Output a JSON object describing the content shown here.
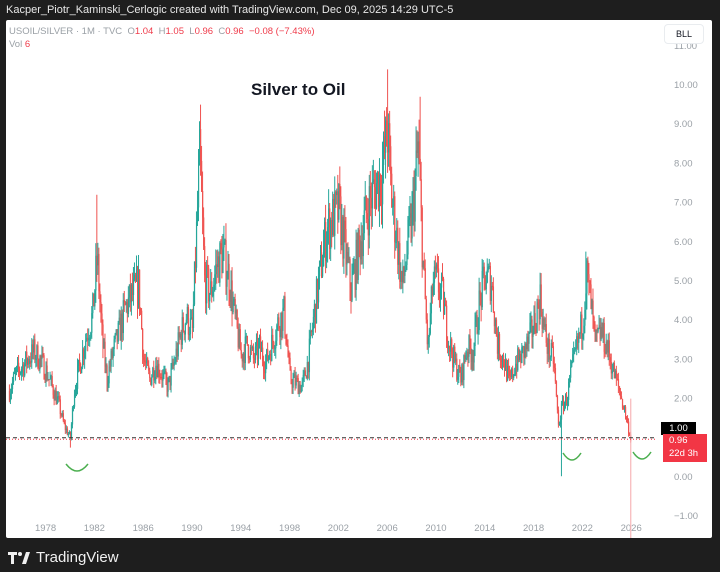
{
  "caption": "Kacper_Piotr_Kaminski_Cerlogic created with TradingView.com, Dec 09, 2025 14:29 UTC-5",
  "legend": {
    "symbol": "USOIL/SILVER · 1M · TVC",
    "open_label": "O",
    "open": "1.04",
    "high_label": "H",
    "high": "1.05",
    "low_label": "L",
    "low": "0.96",
    "close_label": "C",
    "close": "0.96",
    "change": "−0.08 (−7.43%)",
    "vol_label": "Vol",
    "vol": "6"
  },
  "scale_button": "BLL",
  "price_tags": {
    "line_value": "1.00",
    "last_price": "0.96",
    "countdown": "22d 3h"
  },
  "footer": {
    "brand": "TradingView",
    "logo": "TV"
  },
  "colors": {
    "up": "#26a69a",
    "down": "#ef5350",
    "last_tag": "#f23645",
    "annotation": "#4caf50"
  },
  "chart_data": {
    "type": "candlestick",
    "title": "Silver to Oil",
    "series_name": "USOIL/SILVER",
    "interval": "1M",
    "xlabel": "",
    "ylabel": "",
    "ylim": [
      -1,
      11
    ],
    "y_ticks": [
      "11.00",
      "10.00",
      "9.00",
      "8.00",
      "7.00",
      "6.00",
      "5.00",
      "4.00",
      "3.00",
      "2.00",
      "1.00",
      "0.00",
      "−1.00"
    ],
    "x_ticks": [
      "1978",
      "1982",
      "1986",
      "1990",
      "1994",
      "1998",
      "2002",
      "2006",
      "2010",
      "2014",
      "2018",
      "2022",
      "2026"
    ],
    "horizontal_line": 1.0,
    "annotations": [
      "smile-1980-low",
      "smile-2020-low",
      "smile-2025-low"
    ],
    "anchors": [
      {
        "t": 1975.0,
        "c": 2.2
      },
      {
        "t": 1975.5,
        "c": 2.6
      },
      {
        "t": 1976.0,
        "c": 2.8
      },
      {
        "t": 1976.5,
        "c": 3.0
      },
      {
        "t": 1977.0,
        "c": 3.2
      },
      {
        "t": 1977.5,
        "c": 3.0
      },
      {
        "t": 1978.0,
        "c": 2.7
      },
      {
        "t": 1978.5,
        "c": 2.3
      },
      {
        "t": 1979.0,
        "c": 1.9
      },
      {
        "t": 1979.5,
        "c": 1.3
      },
      {
        "t": 1980.0,
        "c": 1.0
      },
      {
        "t": 1980.3,
        "c": 2.2
      },
      {
        "t": 1980.8,
        "c": 2.9
      },
      {
        "t": 1981.3,
        "c": 3.6
      },
      {
        "t": 1981.8,
        "c": 4.1
      },
      {
        "t": 1982.2,
        "c": 5.6
      },
      {
        "t": 1982.6,
        "c": 3.5
      },
      {
        "t": 1983.0,
        "c": 2.5
      },
      {
        "t": 1983.5,
        "c": 3.2
      },
      {
        "t": 1984.0,
        "c": 3.7
      },
      {
        "t": 1984.5,
        "c": 4.3
      },
      {
        "t": 1985.0,
        "c": 4.6
      },
      {
        "t": 1985.6,
        "c": 4.9
      },
      {
        "t": 1986.0,
        "c": 3.0
      },
      {
        "t": 1986.5,
        "c": 2.5
      },
      {
        "t": 1987.0,
        "c": 2.9
      },
      {
        "t": 1987.5,
        "c": 2.6
      },
      {
        "t": 1988.0,
        "c": 2.3
      },
      {
        "t": 1988.5,
        "c": 2.9
      },
      {
        "t": 1989.0,
        "c": 3.6
      },
      {
        "t": 1989.5,
        "c": 4.1
      },
      {
        "t": 1990.0,
        "c": 3.7
      },
      {
        "t": 1990.6,
        "c": 8.2
      },
      {
        "t": 1991.0,
        "c": 5.0
      },
      {
        "t": 1991.5,
        "c": 4.7
      },
      {
        "t": 1992.0,
        "c": 5.4
      },
      {
        "t": 1992.5,
        "c": 5.7
      },
      {
        "t": 1993.0,
        "c": 5.1
      },
      {
        "t": 1993.5,
        "c": 4.0
      },
      {
        "t": 1994.0,
        "c": 3.1
      },
      {
        "t": 1994.5,
        "c": 3.4
      },
      {
        "t": 1995.0,
        "c": 3.0
      },
      {
        "t": 1995.5,
        "c": 3.3
      },
      {
        "t": 1996.0,
        "c": 2.9
      },
      {
        "t": 1996.5,
        "c": 3.4
      },
      {
        "t": 1997.0,
        "c": 3.9
      },
      {
        "t": 1997.5,
        "c": 4.2
      },
      {
        "t": 1998.0,
        "c": 2.5
      },
      {
        "t": 1998.5,
        "c": 2.4
      },
      {
        "t": 1999.0,
        "c": 2.3
      },
      {
        "t": 1999.5,
        "c": 3.0
      },
      {
        "t": 2000.0,
        "c": 4.2
      },
      {
        "t": 2000.5,
        "c": 5.3
      },
      {
        "t": 2001.0,
        "c": 6.3
      },
      {
        "t": 2001.5,
        "c": 6.6
      },
      {
        "t": 2002.0,
        "c": 6.8
      },
      {
        "t": 2002.5,
        "c": 5.8
      },
      {
        "t": 2003.0,
        "c": 4.8
      },
      {
        "t": 2003.5,
        "c": 5.6
      },
      {
        "t": 2004.0,
        "c": 6.4
      },
      {
        "t": 2004.5,
        "c": 7.0
      },
      {
        "t": 2005.0,
        "c": 7.4
      },
      {
        "t": 2005.5,
        "c": 7.7
      },
      {
        "t": 2006.0,
        "c": 8.8
      },
      {
        "t": 2006.3,
        "c": 7.2
      },
      {
        "t": 2006.8,
        "c": 6.0
      },
      {
        "t": 2007.2,
        "c": 4.8
      },
      {
        "t": 2007.6,
        "c": 5.8
      },
      {
        "t": 2008.0,
        "c": 6.6
      },
      {
        "t": 2008.5,
        "c": 8.4
      },
      {
        "t": 2008.9,
        "c": 5.5
      },
      {
        "t": 2009.3,
        "c": 3.2
      },
      {
        "t": 2009.7,
        "c": 4.9
      },
      {
        "t": 2010.0,
        "c": 5.0
      },
      {
        "t": 2010.5,
        "c": 4.6
      },
      {
        "t": 2011.0,
        "c": 3.5
      },
      {
        "t": 2011.5,
        "c": 2.9
      },
      {
        "t": 2012.0,
        "c": 2.5
      },
      {
        "t": 2012.5,
        "c": 3.3
      },
      {
        "t": 2013.0,
        "c": 3.2
      },
      {
        "t": 2013.5,
        "c": 4.4
      },
      {
        "t": 2014.0,
        "c": 5.1
      },
      {
        "t": 2014.5,
        "c": 5.0
      },
      {
        "t": 2015.0,
        "c": 3.4
      },
      {
        "t": 2015.5,
        "c": 3.0
      },
      {
        "t": 2016.0,
        "c": 2.4
      },
      {
        "t": 2016.5,
        "c": 2.9
      },
      {
        "t": 2017.0,
        "c": 3.1
      },
      {
        "t": 2017.5,
        "c": 3.4
      },
      {
        "t": 2018.0,
        "c": 3.9
      },
      {
        "t": 2018.5,
        "c": 4.6
      },
      {
        "t": 2018.8,
        "c": 3.8
      },
      {
        "t": 2019.2,
        "c": 3.2
      },
      {
        "t": 2019.6,
        "c": 3.0
      },
      {
        "t": 2020.0,
        "c": 1.3
      },
      {
        "t": 2020.3,
        "c": 1.8
      },
      {
        "t": 2020.7,
        "c": 2.0
      },
      {
        "t": 2021.0,
        "c": 2.6
      },
      {
        "t": 2021.5,
        "c": 3.3
      },
      {
        "t": 2022.0,
        "c": 4.0
      },
      {
        "t": 2022.3,
        "c": 5.2
      },
      {
        "t": 2022.7,
        "c": 4.3
      },
      {
        "t": 2023.0,
        "c": 3.4
      },
      {
        "t": 2023.5,
        "c": 3.7
      },
      {
        "t": 2024.0,
        "c": 3.3
      },
      {
        "t": 2024.5,
        "c": 2.7
      },
      {
        "t": 2025.0,
        "c": 2.2
      },
      {
        "t": 2025.5,
        "c": 1.6
      },
      {
        "t": 2025.93,
        "c": 0.96
      }
    ],
    "spikes": [
      {
        "t": 1982.2,
        "h": 7.2
      },
      {
        "t": 1990.7,
        "h": 9.5
      },
      {
        "t": 2006.0,
        "h": 10.4
      },
      {
        "t": 2008.7,
        "h": 9.7
      },
      {
        "t": 2020.25,
        "l": 0.02
      },
      {
        "t": 1980.0,
        "l": 0.75
      },
      {
        "t": 2022.25,
        "h": 5.75
      }
    ]
  }
}
